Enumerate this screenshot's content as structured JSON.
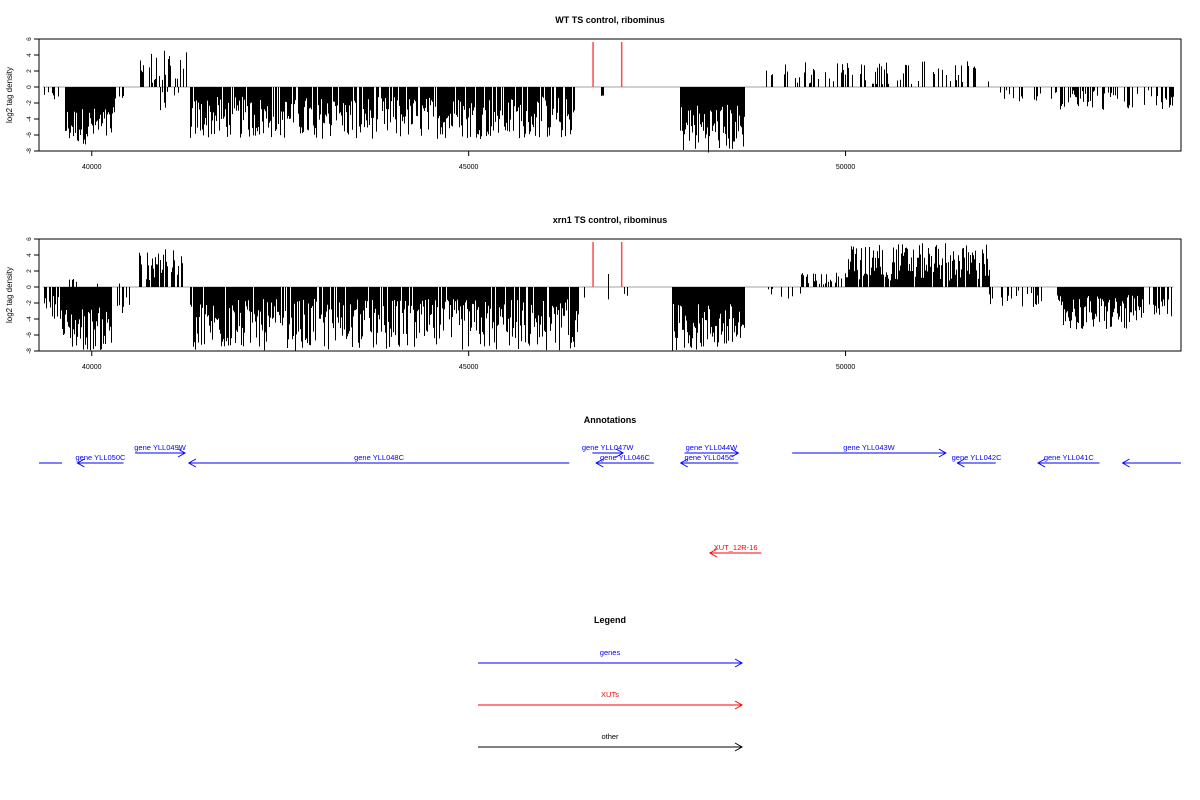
{
  "chart_data": [
    {
      "type": "bar",
      "title": "WT TS control, ribominus",
      "ylabel": "log2 tag density",
      "xlabel": "",
      "xlim": [
        39300,
        54450
      ],
      "ylim": [
        -8,
        6
      ],
      "xticks": [
        40000,
        45000,
        50000
      ],
      "yticks": [
        -8,
        -6,
        -4,
        -2,
        0,
        2,
        4,
        6
      ],
      "colors": {
        "bars": "#000000",
        "markers": "#ff4a4a",
        "baseline": "#a0a0a0"
      },
      "markers_x": [
        46650,
        47030
      ],
      "segments": [
        {
          "x": [
            39350,
            39550
          ],
          "y": [
            -1.8,
            -0.5
          ],
          "density": 0.35
        },
        {
          "x": [
            39650,
            40300
          ],
          "y": [
            -7.2,
            -2.5
          ],
          "density": 1
        },
        {
          "x": [
            40300,
            40420
          ],
          "y": [
            -2.5,
            -0.5
          ],
          "density": 0.5
        },
        {
          "x": [
            40620,
            41300
          ],
          "y": [
            0.5,
            4.6
          ],
          "density": 0.4
        },
        {
          "x": [
            40900,
            41150
          ],
          "y": [
            -3.0,
            -0.5
          ],
          "density": 0.4
        },
        {
          "x": [
            41300,
            46400
          ],
          "y": [
            -6.5,
            -1.2
          ],
          "density": 0.85
        },
        {
          "x": [
            46750,
            46780
          ],
          "y": [
            -1.2,
            -1.0
          ],
          "density": 1
        },
        {
          "x": [
            47800,
            48650
          ],
          "y": [
            -8.2,
            -2.0
          ],
          "density": 1
        },
        {
          "x": [
            48900,
            51950
          ],
          "y": [
            0.3,
            3.2
          ],
          "density": 0.28
        },
        {
          "x": [
            51950,
            52400
          ],
          "y": [
            -1.8,
            -0.4
          ],
          "density": 0.3
        },
        {
          "x": [
            52500,
            53300
          ],
          "y": [
            -2.8,
            -0.4
          ],
          "density": 0.4
        },
        {
          "x": [
            53300,
            54050
          ],
          "y": [
            -3.0,
            -0.4
          ],
          "density": 0.25
        },
        {
          "x": [
            54050,
            54350
          ],
          "y": [
            -2.8,
            -0.8
          ],
          "density": 0.5
        }
      ]
    },
    {
      "type": "bar",
      "title": "xrn1 TS control, ribominus",
      "ylabel": "log2 tag density",
      "xlabel": "",
      "xlim": [
        39300,
        54450
      ],
      "ylim": [
        -8,
        6
      ],
      "xticks": [
        40000,
        45000,
        50000
      ],
      "yticks": [
        -8,
        -6,
        -4,
        -2,
        0,
        2,
        4,
        6
      ],
      "colors": {
        "bars": "#000000",
        "markers": "#ff4a4a",
        "baseline": "#a0a0a0"
      },
      "markers_x": [
        46650,
        47030
      ],
      "segments": [
        {
          "x": [
            39350,
            39600
          ],
          "y": [
            -4.0,
            -1.0
          ],
          "density": 0.7
        },
        {
          "x": [
            39600,
            40250
          ],
          "y": [
            -8.0,
            -2.5
          ],
          "density": 1
        },
        {
          "x": [
            39700,
            40450
          ],
          "y": [
            0.3,
            1.5
          ],
          "density": 0.15
        },
        {
          "x": [
            40250,
            40500
          ],
          "y": [
            -3.5,
            -1.0
          ],
          "density": 0.5
        },
        {
          "x": [
            40620,
            41200
          ],
          "y": [
            0.8,
            4.8
          ],
          "density": 0.6
        },
        {
          "x": [
            41300,
            46450
          ],
          "y": [
            -8.0,
            -1.5
          ],
          "density": 0.9
        },
        {
          "x": [
            45700,
            46400
          ],
          "y": [
            -8.0,
            -4.0
          ],
          "density": 0.05
        },
        {
          "x": [
            46450,
            47300
          ],
          "y": [
            -2.5,
            -0.4
          ],
          "density": 0.12
        },
        {
          "x": [
            46850,
            47050
          ],
          "y": [
            0.5,
            2.0
          ],
          "density": 0.15
        },
        {
          "x": [
            47700,
            48650
          ],
          "y": [
            -8.0,
            -2.0
          ],
          "density": 1
        },
        {
          "x": [
            48650,
            49400
          ],
          "y": [
            -1.5,
            1.2
          ],
          "density": 0.25
        },
        {
          "x": [
            49400,
            50000
          ],
          "y": [
            0.3,
            1.8
          ],
          "density": 0.3
        },
        {
          "x": [
            50000,
            51900
          ],
          "y": [
            0.8,
            5.5
          ],
          "density": 0.9
        },
        {
          "x": [
            51900,
            52600
          ],
          "y": [
            -2.8,
            -0.4
          ],
          "density": 0.3
        },
        {
          "x": [
            52800,
            53950
          ],
          "y": [
            -5.5,
            -1.0
          ],
          "density": 1
        },
        {
          "x": [
            54000,
            54350
          ],
          "y": [
            -4.0,
            -1.5
          ],
          "density": 0.6
        }
      ]
    },
    {
      "type": "annotation-track",
      "title": "Annotations",
      "colors": {
        "genes": "#0000ff",
        "XUTs": "#ff0000"
      },
      "features": [
        {
          "label": "",
          "type": "genes",
          "x1": 38700,
          "x2": 39000,
          "strand": "-",
          "row": 1,
          "show_head": false
        },
        {
          "label": "gene YLL050C",
          "type": "genes",
          "x1": 39200,
          "x2": 39800,
          "strand": "-",
          "row": 1
        },
        {
          "label": "gene YLL049W",
          "type": "genes",
          "x1": 39950,
          "x2": 40600,
          "strand": "+",
          "row": 0
        },
        {
          "label": "gene YLL048C",
          "type": "genes",
          "x1": 40650,
          "x2": 45600,
          "strand": "-",
          "row": 1
        },
        {
          "label": "gene YLL047W",
          "type": "genes",
          "x1": 45900,
          "x2": 46300,
          "strand": "+",
          "row": 0
        },
        {
          "label": "gene YLL046C",
          "type": "genes",
          "x1": 45950,
          "x2": 46700,
          "strand": "-",
          "row": 1
        },
        {
          "label": "gene YLL045C",
          "type": "genes",
          "x1": 47050,
          "x2": 47800,
          "strand": "-",
          "row": 1
        },
        {
          "label": "gene YLL044W",
          "type": "genes",
          "x1": 47100,
          "x2": 47800,
          "strand": "+",
          "row": 0
        },
        {
          "label": "gene YLL043W",
          "type": "genes",
          "x1": 48500,
          "x2": 50500,
          "strand": "+",
          "row": 0
        },
        {
          "label": "gene YLL042C",
          "type": "genes",
          "x1": 50650,
          "x2": 51150,
          "strand": "-",
          "row": 1
        },
        {
          "label": "gene YLL041C",
          "type": "genes",
          "x1": 51700,
          "x2": 52500,
          "strand": "-",
          "row": 1
        },
        {
          "label": "",
          "type": "genes",
          "x1": 52800,
          "x2": 53560,
          "strand": "-",
          "row": 1
        },
        {
          "label": "XUT_12R-16",
          "type": "XUTs",
          "x1": 47430,
          "x2": 48100,
          "strand": "-",
          "row": 4
        }
      ]
    },
    {
      "type": "legend",
      "title": "Legend",
      "entries": [
        {
          "label": "genes",
          "color": "#0000ff"
        },
        {
          "label": "XUTs",
          "color": "#ff0000"
        },
        {
          "label": "other",
          "color": "#000000"
        }
      ]
    }
  ]
}
